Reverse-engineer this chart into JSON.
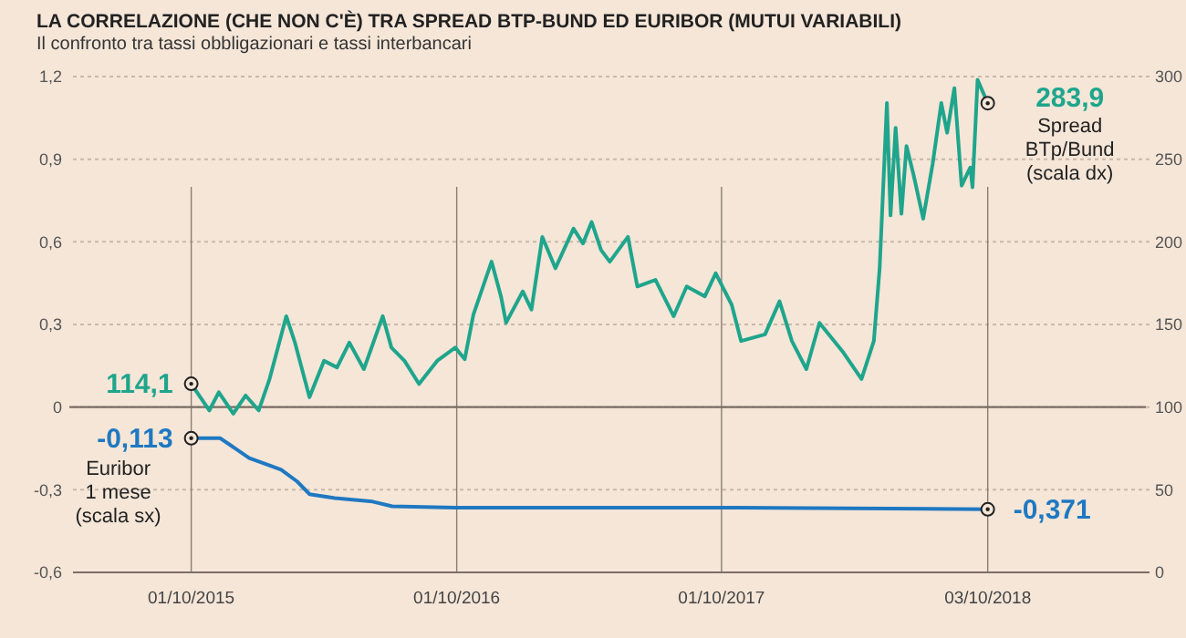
{
  "chart_data": {
    "type": "line",
    "title": "LA CORRELAZIONE (CHE NON C'È) TRA SPREAD BTP-BUND ED EURIBOR (MUTUI VARIABILI)",
    "subtitle": "Il confronto tra tassi obbligazionari e tassi interbancari",
    "xlim": [
      "2015-04-21",
      "2019-05-14"
    ],
    "xticks": [
      {
        "value": "2015-10-01",
        "label": "01/10/2015"
      },
      {
        "value": "2016-10-01",
        "label": "01/10/2016"
      },
      {
        "value": "2017-10-01",
        "label": "01/10/2017"
      },
      {
        "value": "2018-10-03",
        "label": "03/10/2018"
      }
    ],
    "ylim": [
      -0.6,
      1.2
    ],
    "yticks": [
      {
        "value": -0.6,
        "label": "-0,6"
      },
      {
        "value": -0.3,
        "label": "-0,3"
      },
      0,
      {
        "value": 0.3,
        "label": "0,3"
      },
      {
        "value": 0.6,
        "label": "0,6"
      },
      {
        "value": 0.9,
        "label": "0,9"
      },
      {
        "value": 1.2,
        "label": "1,2"
      }
    ],
    "y2lim": [
      0,
      300
    ],
    "y2ticks": [
      0,
      50,
      100,
      150,
      200,
      250,
      300
    ],
    "grid": true,
    "ref_lines": [
      {
        "axis": "y",
        "value": 0
      }
    ],
    "series": [
      {
        "name": "Spread\nBTp/Bund\n(scala dx)",
        "color": "#1fa58c",
        "axis": "y2",
        "x": [
          "2015-10-01",
          "2015-10-26",
          "2015-11-08",
          "2015-11-28",
          "2015-12-15",
          "2016-01-02",
          "2016-01-17",
          "2016-02-09",
          "2016-02-21",
          "2016-03-12",
          "2016-04-01",
          "2016-04-19",
          "2016-05-06",
          "2016-05-26",
          "2016-06-21",
          "2016-07-03",
          "2016-07-21",
          "2016-08-10",
          "2016-09-04",
          "2016-09-29",
          "2016-10-12",
          "2016-10-24",
          "2016-11-18",
          "2016-12-01",
          "2016-12-08",
          "2016-12-31",
          "2017-01-12",
          "2017-01-27",
          "2017-02-14",
          "2017-03-11",
          "2017-03-24",
          "2017-04-05",
          "2017-04-18",
          "2017-04-30",
          "2017-05-25",
          "2017-06-07",
          "2017-07-02",
          "2017-07-27",
          "2017-08-14",
          "2017-09-08",
          "2017-09-23",
          "2017-10-15",
          "2017-10-28",
          "2017-11-30",
          "2017-12-20",
          "2018-01-06",
          "2018-01-26",
          "2018-02-13",
          "2018-03-18",
          "2018-04-12",
          "2018-04-29",
          "2018-05-07",
          "2018-05-17",
          "2018-05-22",
          "2018-05-29",
          "2018-06-06",
          "2018-06-13",
          "2018-06-23",
          "2018-07-06",
          "2018-07-19",
          "2018-07-31",
          "2018-08-08",
          "2018-08-18",
          "2018-08-28",
          "2018-09-09",
          "2018-09-12",
          "2018-09-19",
          "2018-10-03"
        ],
        "values": [
          114.1,
          98,
          109,
          96,
          107,
          98,
          117,
          155,
          139,
          106,
          128,
          124,
          139,
          123,
          155,
          136,
          128,
          114,
          128,
          136,
          129,
          156,
          188,
          167,
          151,
          170,
          159,
          203,
          184,
          208,
          199,
          212,
          195,
          188,
          203,
          173,
          177,
          155,
          173,
          167,
          181,
          162,
          140,
          144,
          164,
          140,
          123,
          151,
          133,
          117,
          140,
          184,
          284,
          216,
          269,
          217,
          258,
          240,
          214,
          247,
          284,
          266,
          293,
          234,
          245,
          233,
          298,
          283.9
        ],
        "value_labels": [
          "114,1",
          null,
          null,
          null,
          null,
          null,
          null,
          null,
          null,
          null,
          null,
          null,
          null,
          null,
          null,
          null,
          null,
          null,
          null,
          null,
          null,
          null,
          null,
          null,
          null,
          null,
          null,
          null,
          null,
          null,
          null,
          null,
          null,
          null,
          null,
          null,
          null,
          null,
          null,
          null,
          null,
          null,
          null,
          null,
          null,
          null,
          null,
          null,
          null,
          null,
          null,
          null,
          null,
          null,
          null,
          null,
          null,
          null,
          null,
          null,
          null,
          null,
          null,
          null,
          null,
          null,
          null,
          "283,9"
        ]
      },
      {
        "name": "Euribor\n1 mese\n(scala sx)",
        "color": "#1f78c1",
        "x": [
          "2015-10-01",
          "2015-11-10",
          "2015-12-20",
          "2016-02-02",
          "2016-02-24",
          "2016-03-12",
          "2016-04-16",
          "2016-06-07",
          "2016-07-04",
          "2016-09-29",
          "2017-10-20",
          "2018-10-03"
        ],
        "values": [
          -0.113,
          -0.113,
          -0.185,
          -0.227,
          -0.27,
          -0.316,
          -0.33,
          -0.343,
          -0.36,
          -0.365,
          -0.365,
          -0.371
        ],
        "value_labels": [
          "-0,113",
          null,
          null,
          null,
          null,
          null,
          null,
          null,
          null,
          null,
          null,
          "-0,371"
        ]
      }
    ]
  }
}
